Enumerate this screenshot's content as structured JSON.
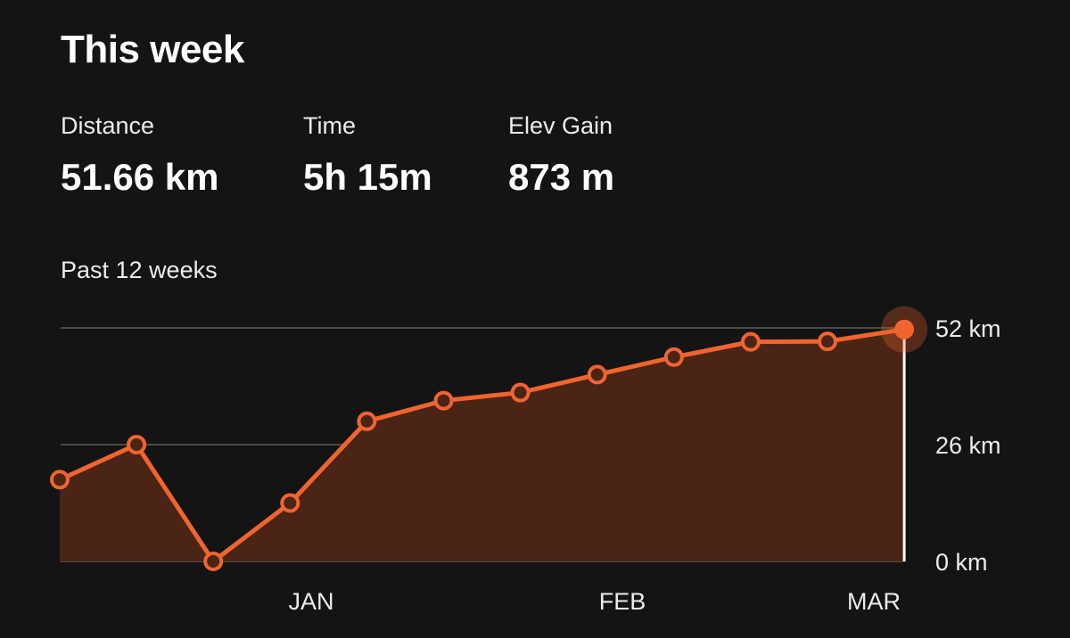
{
  "header": {
    "title": "This week"
  },
  "stats": [
    {
      "label": "Distance",
      "value": "51.66 km"
    },
    {
      "label": "Time",
      "value": "5h 15m"
    },
    {
      "label": "Elev Gain",
      "value": "873 m"
    }
  ],
  "chart_label": "Past 12 weeks",
  "chart_data": {
    "type": "area",
    "title": "",
    "xlabel": "",
    "ylabel": "",
    "x_tick_labels": [
      "JAN",
      "FEB",
      "MAR"
    ],
    "y_tick_labels": [
      "52 km",
      "26 km",
      "0 km"
    ],
    "y_ticks": [
      52,
      26,
      0
    ],
    "ylim": [
      0,
      52
    ],
    "grid": true,
    "series": [
      {
        "values": [
          18.2,
          26.0,
          0.0,
          13.0,
          31.2,
          35.8,
          37.6,
          41.6,
          45.5,
          48.9,
          49.0,
          51.66
        ]
      }
    ],
    "highlighted_point": 11,
    "colors": {
      "line": "#f0642f",
      "fill": "#4a2415",
      "point_fill": "#4a2415",
      "highlight": "#f0642f",
      "gridline": "#4a4a4a",
      "cursor": "#ffffff"
    }
  }
}
